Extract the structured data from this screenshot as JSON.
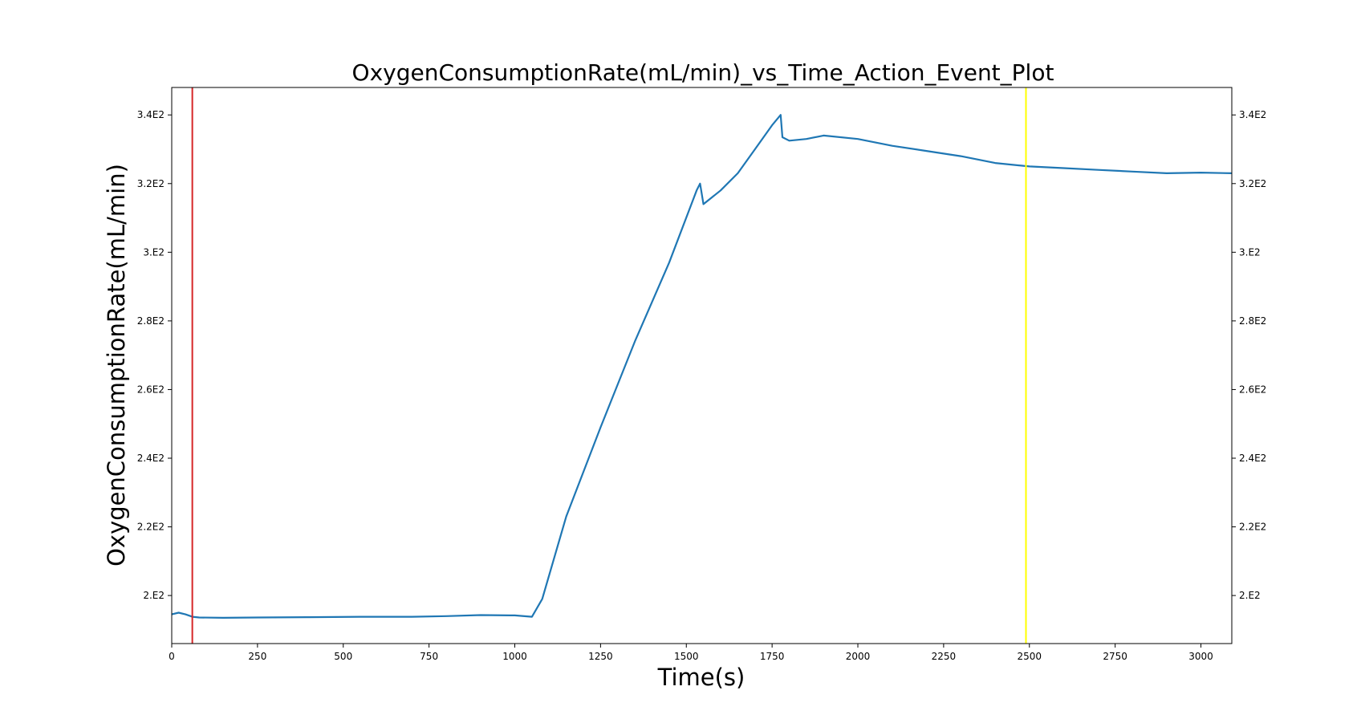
{
  "chart_data": {
    "type": "line",
    "title": "OxygenConsumptionRate(mL/min)_vs_Time_Action_Event_Plot",
    "xlabel": "Time(s)",
    "ylabel": "OxygenConsumptionRate(mL/min)",
    "xlim": [
      0,
      3090
    ],
    "ylim": [
      186,
      348
    ],
    "x_ticks": [
      0,
      250,
      500,
      750,
      1000,
      1250,
      1500,
      1750,
      2000,
      2250,
      2500,
      2750,
      3000
    ],
    "x_tick_labels": [
      "0",
      "250",
      "500",
      "750",
      "1000",
      "1250",
      "1500",
      "1750",
      "2000",
      "2250",
      "2500",
      "2750",
      "3000"
    ],
    "y_ticks": [
      200,
      220,
      240,
      260,
      280,
      300,
      320,
      340
    ],
    "y_tick_labels": [
      "2.E2",
      "2.2E2",
      "2.4E2",
      "2.6E2",
      "2.8E2",
      "3.E2",
      "3.2E2",
      "3.4E2"
    ],
    "right_axis_ticks": true,
    "grid": false,
    "series": [
      {
        "color": "#1f77b4",
        "x": [
          0,
          20,
          40,
          60,
          80,
          150,
          250,
          400,
          550,
          700,
          800,
          900,
          1000,
          1050,
          1080,
          1150,
          1250,
          1350,
          1450,
          1530,
          1540,
          1550,
          1600,
          1650,
          1700,
          1750,
          1775,
          1780,
          1800,
          1850,
          1900,
          2000,
          2100,
          2200,
          2300,
          2400,
          2500,
          2600,
          2700,
          2800,
          2900,
          3000,
          3090
        ],
        "y": [
          194.5,
          195.0,
          194.5,
          193.8,
          193.6,
          193.5,
          193.6,
          193.7,
          193.8,
          193.8,
          194.0,
          194.3,
          194.2,
          193.8,
          199.0,
          223.0,
          249.0,
          274.0,
          297.0,
          318.0,
          320.0,
          314.0,
          318.0,
          323.0,
          330.0,
          337.0,
          340.0,
          333.5,
          332.5,
          333.0,
          334.0,
          333.0,
          331.0,
          329.5,
          328.0,
          326.0,
          325.0,
          324.5,
          324.0,
          323.5,
          323.0,
          323.2,
          323.0
        ]
      }
    ],
    "vertical_lines": [
      {
        "x": 60,
        "color": "#d62728"
      },
      {
        "x": 2490,
        "color": "#ffff00"
      }
    ]
  }
}
